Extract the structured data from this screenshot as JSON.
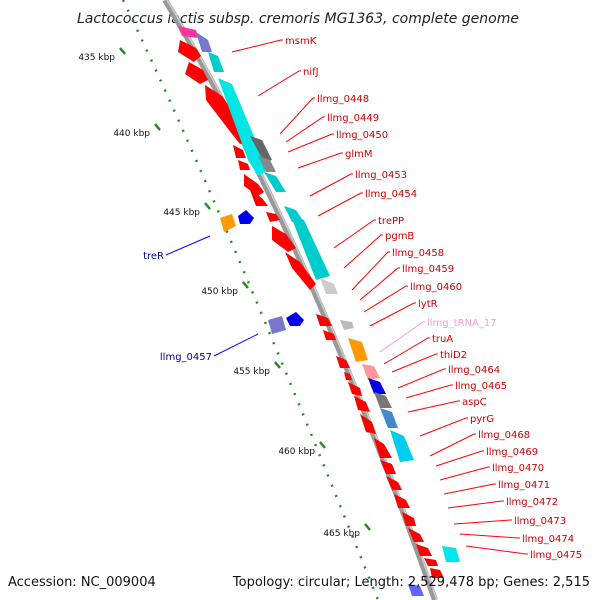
{
  "title": "Lactococcus lactis subsp. cremoris MG1363, complete genome",
  "footer": {
    "accession": "Accession: NC_009004",
    "topology": "Topology: circular; Length: 2,529,478 bp; Genes: 2,515"
  },
  "colors": {
    "forward_gene": "#ff0000",
    "reverse_gene": "#0000ff",
    "forward_label": "#cc0000",
    "reverse_label": "#000099",
    "trna": "#ff99cc",
    "ruler_ticks": "#228b22",
    "backbone": "#999999"
  },
  "ruler": [
    {
      "label": "435 kbp"
    },
    {
      "label": "440 kbp"
    },
    {
      "label": "445 kbp"
    },
    {
      "label": "450 kbp"
    },
    {
      "label": "455 kbp"
    },
    {
      "label": "460 kbp"
    },
    {
      "label": "465 kbp"
    }
  ],
  "forward_labels": [
    {
      "text": "msmK"
    },
    {
      "text": "nifJ"
    },
    {
      "text": "llmg_0448"
    },
    {
      "text": "llmg_0449"
    },
    {
      "text": "llmg_0450"
    },
    {
      "text": "glmM"
    },
    {
      "text": "llmg_0453"
    },
    {
      "text": "llmg_0454"
    },
    {
      "text": "trePP"
    },
    {
      "text": "pgmB"
    },
    {
      "text": "llmg_0458"
    },
    {
      "text": "llmg_0459"
    },
    {
      "text": "llmg_0460"
    },
    {
      "text": "lytR"
    },
    {
      "text": "llmg_tRNA_17"
    },
    {
      "text": "truA"
    },
    {
      "text": "thiD2"
    },
    {
      "text": "llmg_0464"
    },
    {
      "text": "llmg_0465"
    },
    {
      "text": "aspC"
    },
    {
      "text": "pyrG"
    },
    {
      "text": "llmg_0468"
    },
    {
      "text": "llmg_0469"
    },
    {
      "text": "llmg_0470"
    },
    {
      "text": "llmg_0471"
    },
    {
      "text": "llmg_0472"
    },
    {
      "text": "llmg_0473"
    },
    {
      "text": "llmg_0474"
    },
    {
      "text": "llmg_0475"
    }
  ],
  "reverse_labels": [
    {
      "text": "treR"
    },
    {
      "text": "llmg_0457"
    }
  ]
}
